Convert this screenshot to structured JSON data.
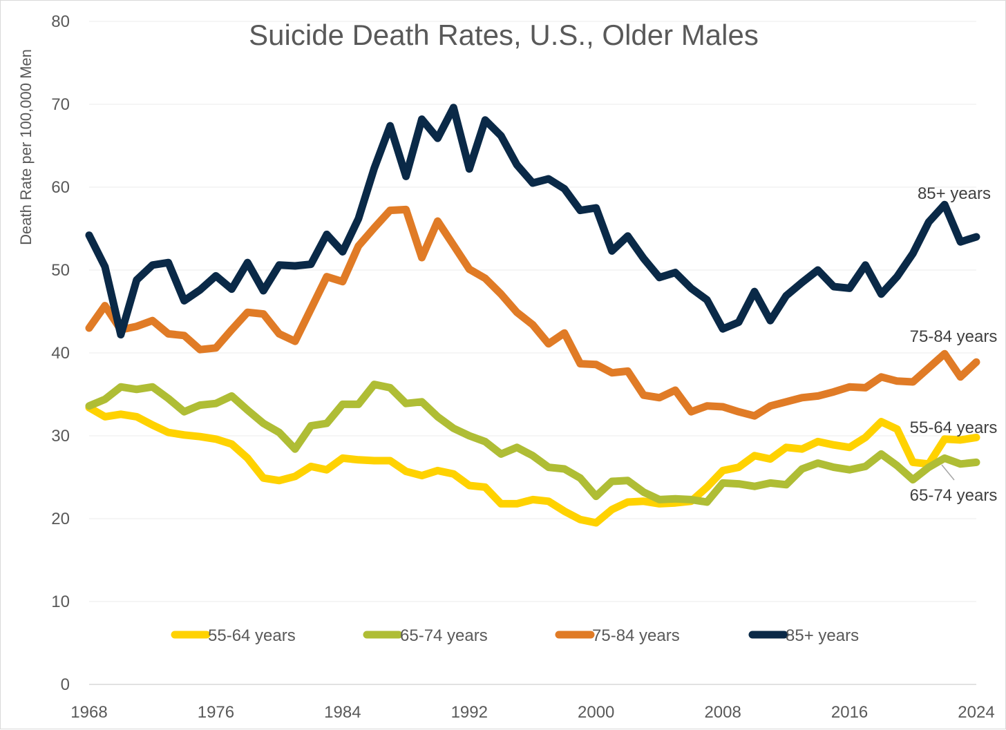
{
  "chart_data": {
    "type": "line",
    "title": "Suicide Death Rates, U.S., Older Males",
    "xlabel": "",
    "ylabel": "Death Rate per 100,000 Men",
    "ylim": [
      0,
      80
    ],
    "xlim": [
      1968,
      2024
    ],
    "y_ticks": [
      0,
      10,
      20,
      30,
      40,
      50,
      60,
      70,
      80
    ],
    "x_ticks": [
      1968,
      1976,
      1984,
      1992,
      2000,
      2008,
      2016,
      2024
    ],
    "grid": true,
    "legend_position": "bottom",
    "x": [
      1968,
      1969,
      1970,
      1971,
      1972,
      1973,
      1974,
      1975,
      1976,
      1977,
      1978,
      1979,
      1980,
      1981,
      1982,
      1983,
      1984,
      1985,
      1986,
      1987,
      1988,
      1989,
      1990,
      1991,
      1992,
      1993,
      1994,
      1995,
      1996,
      1997,
      1998,
      1999,
      2000,
      2001,
      2002,
      2003,
      2004,
      2005,
      2006,
      2007,
      2008,
      2009,
      2010,
      2011,
      2012,
      2013,
      2014,
      2015,
      2016,
      2017,
      2018,
      2019,
      2020,
      2021,
      2022,
      2023,
      2024
    ],
    "series": [
      {
        "name": "55-64 years",
        "color": "#ffd200",
        "end_label": "55-64 years",
        "values": [
          33.4,
          32.3,
          32.6,
          32.3,
          31.3,
          30.4,
          30.1,
          29.9,
          29.6,
          29.0,
          27.3,
          24.9,
          24.6,
          25.1,
          26.3,
          25.9,
          27.3,
          27.1,
          27.0,
          27.0,
          25.7,
          25.2,
          25.8,
          25.4,
          24.0,
          23.8,
          21.8,
          21.8,
          22.3,
          22.1,
          20.9,
          19.9,
          19.5,
          21.1,
          22.0,
          22.1,
          21.8,
          21.9,
          22.1,
          23.8,
          25.8,
          26.2,
          27.6,
          27.2,
          28.6,
          28.4,
          29.3,
          28.9,
          28.6,
          29.8,
          31.7,
          30.8,
          26.8,
          26.6,
          29.6,
          29.5,
          29.8
        ]
      },
      {
        "name": "65-74 years",
        "color": "#afbd35",
        "end_label": "65-74 years",
        "values": [
          33.6,
          34.4,
          35.9,
          35.6,
          35.9,
          34.5,
          32.9,
          33.7,
          33.9,
          34.8,
          33.1,
          31.5,
          30.4,
          28.4,
          31.2,
          31.5,
          33.8,
          33.8,
          36.2,
          35.8,
          33.9,
          34.1,
          32.3,
          30.9,
          30.0,
          29.3,
          27.8,
          28.6,
          27.6,
          26.2,
          26.0,
          24.9,
          22.7,
          24.5,
          24.6,
          23.2,
          22.3,
          22.4,
          22.3,
          22.0,
          24.3,
          24.2,
          23.9,
          24.3,
          24.1,
          26.0,
          26.7,
          26.2,
          25.9,
          26.3,
          27.8,
          26.4,
          24.7,
          26.2,
          27.3,
          26.6,
          26.8
        ]
      },
      {
        "name": "75-84 years",
        "color": "#e07b26",
        "end_label": "75-84 years",
        "values": [
          43.0,
          45.7,
          42.8,
          43.2,
          43.9,
          42.3,
          42.1,
          40.4,
          40.6,
          42.8,
          44.9,
          44.7,
          42.3,
          41.4,
          45.3,
          49.2,
          48.6,
          52.9,
          55.1,
          57.2,
          57.3,
          51.5,
          55.9,
          53.0,
          50.1,
          49.0,
          47.1,
          44.9,
          43.4,
          41.1,
          42.4,
          38.7,
          38.6,
          37.6,
          37.8,
          34.9,
          34.6,
          35.5,
          32.9,
          33.6,
          33.5,
          32.9,
          32.4,
          33.6,
          34.1,
          34.6,
          34.8,
          35.3,
          35.9,
          35.8,
          37.1,
          36.6,
          36.5,
          38.2,
          39.9,
          37.1,
          38.9
        ]
      },
      {
        "name": "85+ years",
        "color": "#0a2947",
        "end_label": "85+ years",
        "values": [
          54.2,
          50.4,
          42.2,
          48.8,
          50.6,
          50.9,
          46.3,
          47.6,
          49.3,
          47.7,
          50.9,
          47.5,
          50.6,
          50.5,
          50.7,
          54.3,
          52.2,
          56.2,
          62.3,
          67.4,
          61.3,
          68.2,
          65.9,
          69.6,
          62.2,
          68.1,
          66.2,
          62.7,
          60.5,
          61.0,
          59.8,
          57.2,
          57.5,
          52.3,
          54.1,
          51.4,
          49.1,
          49.7,
          47.8,
          46.4,
          42.9,
          43.7,
          47.4,
          43.9,
          46.9,
          48.5,
          50.0,
          48.0,
          47.8,
          50.6,
          47.1,
          49.2,
          52.0,
          55.8,
          57.9,
          53.4,
          54.0
        ]
      }
    ]
  }
}
